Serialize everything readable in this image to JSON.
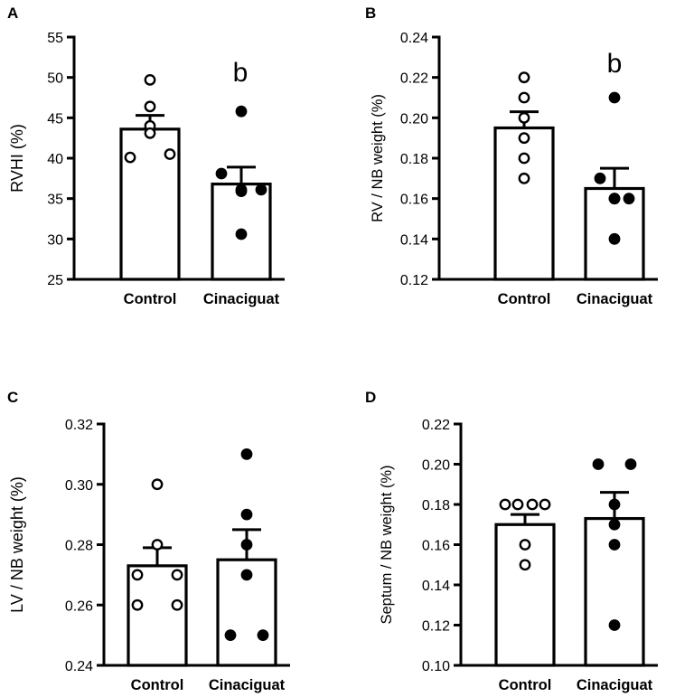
{
  "chart_data": [
    {
      "type": "bar",
      "panel": "A",
      "categories": [
        "Control",
        "Cinaciguat"
      ],
      "means": [
        43.6,
        36.8
      ],
      "sem": [
        1.7,
        2.1
      ],
      "points": [
        [
          49.7,
          46.4,
          44.0,
          43.1,
          40.1,
          40.5
        ],
        [
          45.8,
          38.1,
          36.1,
          36.1,
          35.9,
          30.6
        ]
      ],
      "ylabel": "RVHI (%)",
      "ylim": [
        25,
        55
      ],
      "yticks": [
        25,
        30,
        35,
        40,
        45,
        50,
        55
      ],
      "ytick_labels": [
        "25",
        "30",
        "35",
        "40",
        "45",
        "50",
        "55"
      ],
      "annotation": "b"
    },
    {
      "type": "bar",
      "panel": "B",
      "categories": [
        "Control",
        "Cinaciguat"
      ],
      "means": [
        0.195,
        0.165
      ],
      "sem": [
        0.008,
        0.01
      ],
      "points": [
        [
          0.22,
          0.21,
          0.2,
          0.19,
          0.18,
          0.17
        ],
        [
          0.21,
          0.17,
          0.16,
          0.16,
          0.16,
          0.14
        ]
      ],
      "ylabel": "RV / NB weight (%)",
      "ylim": [
        0.12,
        0.24
      ],
      "yticks": [
        0.12,
        0.14,
        0.16,
        0.18,
        0.2,
        0.22,
        0.24
      ],
      "ytick_labels": [
        "0.12",
        "0.14",
        "0.16",
        "0.18",
        "0.20",
        "0.22",
        "0.24"
      ],
      "annotation": "b"
    },
    {
      "type": "bar",
      "panel": "C",
      "categories": [
        "Control",
        "Cinaciguat"
      ],
      "means": [
        0.273,
        0.275
      ],
      "sem": [
        0.006,
        0.01
      ],
      "points": [
        [
          0.3,
          0.28,
          0.27,
          0.27,
          0.26,
          0.26
        ],
        [
          0.31,
          0.29,
          0.28,
          0.27,
          0.25,
          0.25
        ]
      ],
      "ylabel": "LV / NB weight (%)",
      "ylim": [
        0.24,
        0.32
      ],
      "yticks": [
        0.24,
        0.26,
        0.28,
        0.3,
        0.32
      ],
      "ytick_labels": [
        "0.24",
        "0.26",
        "0.28",
        "0.30",
        "0.32"
      ],
      "annotation": ""
    },
    {
      "type": "bar",
      "panel": "D",
      "categories": [
        "Control",
        "Cinaciguat"
      ],
      "means": [
        0.17,
        0.173
      ],
      "sem": [
        0.005,
        0.013
      ],
      "points": [
        [
          0.18,
          0.18,
          0.18,
          0.18,
          0.16,
          0.15
        ],
        [
          0.2,
          0.2,
          0.18,
          0.17,
          0.16,
          0.12
        ]
      ],
      "ylabel": "Septum / NB weight (%)",
      "ylim": [
        0.1,
        0.22
      ],
      "yticks": [
        0.1,
        0.12,
        0.14,
        0.16,
        0.18,
        0.2,
        0.22
      ],
      "ytick_labels": [
        "0.10",
        "0.12",
        "0.14",
        "0.16",
        "0.18",
        "0.20",
        "0.22"
      ],
      "annotation": ""
    }
  ],
  "colors": {
    "control_marker": "#ffffff",
    "treated_marker": "#000000",
    "bar_fill": "#ffffff",
    "stroke": "#000000"
  }
}
